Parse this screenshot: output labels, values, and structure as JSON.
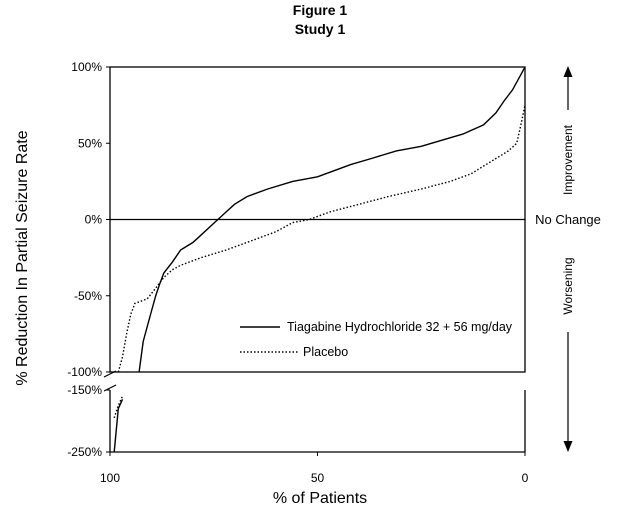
{
  "chart_data": {
    "type": "line",
    "title": "Figure 1",
    "subtitle": "Study 1",
    "xlabel": "% of Patients",
    "ylabel": "% Reduction In Partial Seizure Rate",
    "x_reversed": true,
    "xlim": [
      100,
      0
    ],
    "x_ticks": [
      {
        "value": 100,
        "label": "100"
      },
      {
        "value": 50,
        "label": "50"
      },
      {
        "value": 0,
        "label": "0"
      }
    ],
    "y_ticks_upper": [
      {
        "value": 100,
        "label": "100%"
      },
      {
        "value": 50,
        "label": "50%"
      },
      {
        "value": 0,
        "label": "0%"
      },
      {
        "value": -50,
        "label": "-50%"
      },
      {
        "value": -100,
        "label": "-100%"
      }
    ],
    "y_ticks_lower": [
      {
        "value": -150,
        "label": "-150%"
      },
      {
        "value": -250,
        "label": "-250%"
      }
    ],
    "right_annotations": {
      "improvement": "Improvement",
      "no_change": "No Change",
      "worsening": "Worsening"
    },
    "legend": {
      "position": "center-right",
      "entries": [
        {
          "label": "Tiagabine Hydrochloride 32 + 56 mg/day",
          "style": "solid"
        },
        {
          "label": "Placebo",
          "style": "dotted"
        }
      ]
    },
    "series": [
      {
        "name": "Tiagabine Hydrochloride 32 + 56 mg/day",
        "style": "solid",
        "upper_points": [
          [
            93,
            -100
          ],
          [
            92,
            -80
          ],
          [
            91,
            -70
          ],
          [
            90,
            -60
          ],
          [
            89,
            -50
          ],
          [
            88,
            -42
          ],
          [
            87,
            -35
          ],
          [
            85,
            -28
          ],
          [
            83,
            -20
          ],
          [
            80,
            -15
          ],
          [
            78,
            -10
          ],
          [
            76,
            -5
          ],
          [
            74,
            0
          ],
          [
            72,
            5
          ],
          [
            70,
            10
          ],
          [
            67,
            15
          ],
          [
            62,
            20
          ],
          [
            56,
            25
          ],
          [
            50,
            28
          ],
          [
            46,
            32
          ],
          [
            42,
            36
          ],
          [
            37,
            40
          ],
          [
            31,
            45
          ],
          [
            25,
            48
          ],
          [
            20,
            52
          ],
          [
            15,
            56
          ],
          [
            10,
            62
          ],
          [
            7,
            70
          ],
          [
            5,
            78
          ],
          [
            3,
            85
          ],
          [
            1,
            95
          ],
          [
            0,
            100
          ]
        ],
        "lower_points": [
          [
            99,
            -250
          ],
          [
            98,
            -180
          ],
          [
            97,
            -165
          ]
        ]
      },
      {
        "name": "Placebo",
        "style": "dotted",
        "upper_points": [
          [
            98,
            -100
          ],
          [
            97,
            -90
          ],
          [
            96,
            -75
          ],
          [
            95,
            -62
          ],
          [
            94,
            -55
          ],
          [
            91,
            -52
          ],
          [
            89,
            -45
          ],
          [
            87,
            -38
          ],
          [
            85,
            -33
          ],
          [
            83,
            -30
          ],
          [
            78,
            -25
          ],
          [
            72,
            -20
          ],
          [
            67,
            -15
          ],
          [
            60,
            -8
          ],
          [
            56,
            -2
          ],
          [
            52,
            0
          ],
          [
            47,
            5
          ],
          [
            40,
            10
          ],
          [
            33,
            15
          ],
          [
            25,
            20
          ],
          [
            18,
            25
          ],
          [
            13,
            30
          ],
          [
            10,
            35
          ],
          [
            7,
            40
          ],
          [
            4,
            45
          ],
          [
            2,
            50
          ],
          [
            1,
            62
          ],
          [
            0,
            75
          ]
        ],
        "lower_points": [
          [
            99,
            -195
          ],
          [
            98,
            -175
          ],
          [
            97,
            -160
          ]
        ]
      }
    ]
  }
}
